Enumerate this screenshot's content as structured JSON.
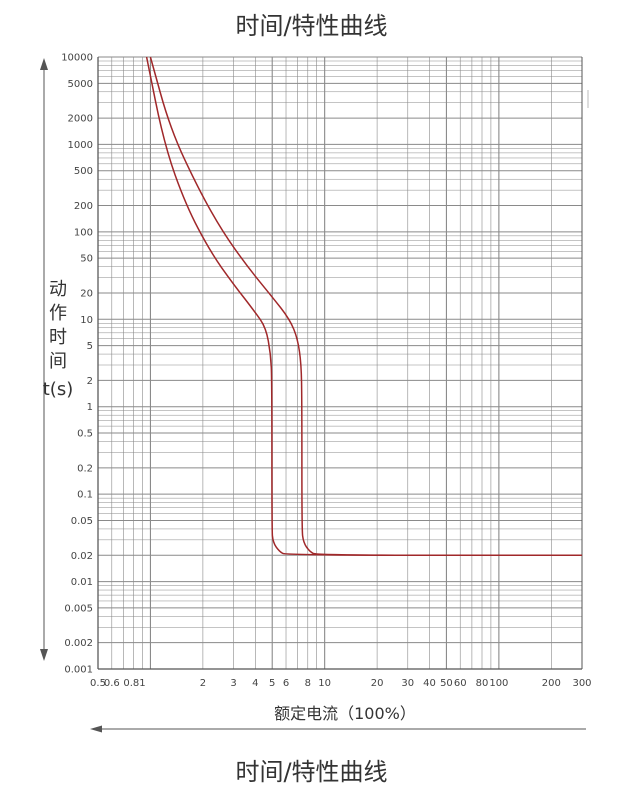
{
  "page": {
    "title_top": "时间/特性曲线",
    "title_bottom": "时间/特性曲线"
  },
  "chart_data": {
    "type": "line",
    "title": "时间/特性曲线",
    "xlabel": "额定电流（100%）",
    "ylabel_chars": [
      "动",
      "作",
      "时",
      "间"
    ],
    "ylabel_unit": "t(s)",
    "x_scale": "log",
    "y_scale": "log",
    "xlim": [
      0.5,
      300
    ],
    "ylim": [
      0.001,
      10000
    ],
    "grid": true,
    "x_tick_labels": [
      {
        "v": 0.5,
        "t": "0.5"
      },
      {
        "v": 0.6,
        "t": "0.6"
      },
      {
        "v": 0.81,
        "t": "0.81"
      },
      {
        "v": 2,
        "t": "2"
      },
      {
        "v": 3,
        "t": "3"
      },
      {
        "v": 4,
        "t": "4"
      },
      {
        "v": 5,
        "t": "5"
      },
      {
        "v": 6,
        "t": "6"
      },
      {
        "v": 8,
        "t": "8"
      },
      {
        "v": 10,
        "t": "10"
      },
      {
        "v": 20,
        "t": "20"
      },
      {
        "v": 30,
        "t": "30"
      },
      {
        "v": 40,
        "t": "40"
      },
      {
        "v": 50,
        "t": "50"
      },
      {
        "v": 60,
        "t": "60"
      },
      {
        "v": 80,
        "t": "80"
      },
      {
        "v": 100,
        "t": "100"
      },
      {
        "v": 200,
        "t": "200"
      },
      {
        "v": 300,
        "t": "300"
      }
    ],
    "y_tick_labels": [
      {
        "v": 10000,
        "t": "10000"
      },
      {
        "v": 5000,
        "t": "5000"
      },
      {
        "v": 2000,
        "t": "2000"
      },
      {
        "v": 1000,
        "t": "1000"
      },
      {
        "v": 500,
        "t": "500"
      },
      {
        "v": 200,
        "t": "200"
      },
      {
        "v": 100,
        "t": "100"
      },
      {
        "v": 50,
        "t": "50"
      },
      {
        "v": 20,
        "t": "20"
      },
      {
        "v": 10,
        "t": "10"
      },
      {
        "v": 5,
        "t": "5"
      },
      {
        "v": 2,
        "t": "2"
      },
      {
        "v": 1,
        "t": "1"
      },
      {
        "v": 0.5,
        "t": "0.5"
      },
      {
        "v": 0.2,
        "t": "0.2"
      },
      {
        "v": 0.1,
        "t": "0.1"
      },
      {
        "v": 0.05,
        "t": "0.05"
      },
      {
        "v": 0.02,
        "t": "0.02"
      },
      {
        "v": 0.01,
        "t": "0.01"
      },
      {
        "v": 0.005,
        "t": "0.005"
      },
      {
        "v": 0.002,
        "t": "0.002"
      },
      {
        "v": 0.001,
        "t": "0.001"
      }
    ],
    "colors": {
      "curve": "#a0282a",
      "grid": "#8a8a8a",
      "axis": "#555555"
    },
    "series": [
      {
        "points": [
          [
            0.95,
            10000
          ],
          [
            1.2,
            1000
          ],
          [
            1.6,
            200
          ],
          [
            2.2,
            60
          ],
          [
            3.0,
            25
          ],
          [
            4.0,
            12
          ],
          [
            4.6,
            8
          ],
          [
            4.9,
            4
          ],
          [
            4.98,
            2
          ],
          [
            4.98,
            0.04
          ],
          [
            5.05,
            0.028
          ],
          [
            5.5,
            0.022
          ],
          [
            6.0,
            0.02
          ],
          [
            300,
            0.02
          ]
        ]
      },
      {
        "points": [
          [
            1.0,
            10000
          ],
          [
            1.3,
            1500
          ],
          [
            1.9,
            300
          ],
          [
            2.6,
            100
          ],
          [
            3.6,
            40
          ],
          [
            5.0,
            18
          ],
          [
            6.3,
            10
          ],
          [
            7.0,
            6
          ],
          [
            7.35,
            3
          ],
          [
            7.4,
            1
          ],
          [
            7.4,
            0.04
          ],
          [
            7.55,
            0.028
          ],
          [
            8.2,
            0.022
          ],
          [
            9.0,
            0.02
          ],
          [
            300,
            0.02
          ]
        ]
      }
    ]
  }
}
